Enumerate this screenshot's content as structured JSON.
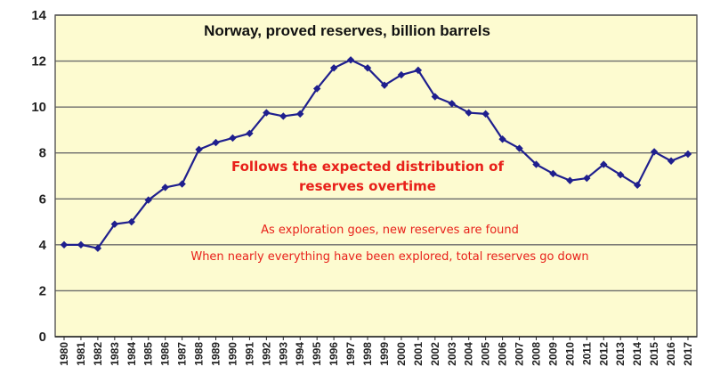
{
  "chart_data": {
    "type": "line",
    "title": "Norway, proved reserves, billion barrels",
    "xlabel": "",
    "ylabel": "",
    "x": [
      "1980",
      "1981",
      "1982",
      "1983",
      "1984",
      "1985",
      "1986",
      "1987",
      "1988",
      "1989",
      "1990",
      "1991",
      "1992",
      "1993",
      "1994",
      "1995",
      "1996",
      "1997",
      "1998",
      "1999",
      "2000",
      "2001",
      "2002",
      "2003",
      "2004",
      "2005",
      "2006",
      "2007",
      "2008",
      "2009",
      "2010",
      "2011",
      "2012",
      "2013",
      "2014",
      "2015",
      "2016",
      "2017"
    ],
    "series": [
      {
        "name": "",
        "values": [
          4.0,
          4.0,
          3.85,
          4.9,
          5.0,
          5.95,
          6.5,
          6.65,
          8.15,
          8.45,
          8.65,
          8.85,
          9.75,
          9.6,
          9.7,
          10.8,
          11.7,
          12.05,
          11.7,
          10.95,
          11.4,
          11.6,
          10.45,
          10.15,
          9.75,
          9.7,
          8.6,
          8.2,
          7.5,
          7.1,
          6.8,
          6.9,
          7.5,
          7.05,
          6.6,
          8.05,
          7.65,
          7.95
        ]
      }
    ],
    "ylim": [
      0,
      14
    ],
    "yticks": [
      "0",
      "2",
      "4",
      "6",
      "8",
      "10",
      "12",
      "14"
    ],
    "grid": true,
    "annotations": {
      "headline_line1": "Follows the expected distribution of",
      "headline_line2": "reserves overtime",
      "note1": "As exploration goes, new reserves are found",
      "note2": "When nearly everything have been explored, total reserves go down"
    },
    "colors": {
      "plot_background": "#fdfbd0",
      "line": "#1f1f8e",
      "marker": "#1f1f8e",
      "grid": "#6b6b6b",
      "annotation": "#e8201a"
    }
  }
}
